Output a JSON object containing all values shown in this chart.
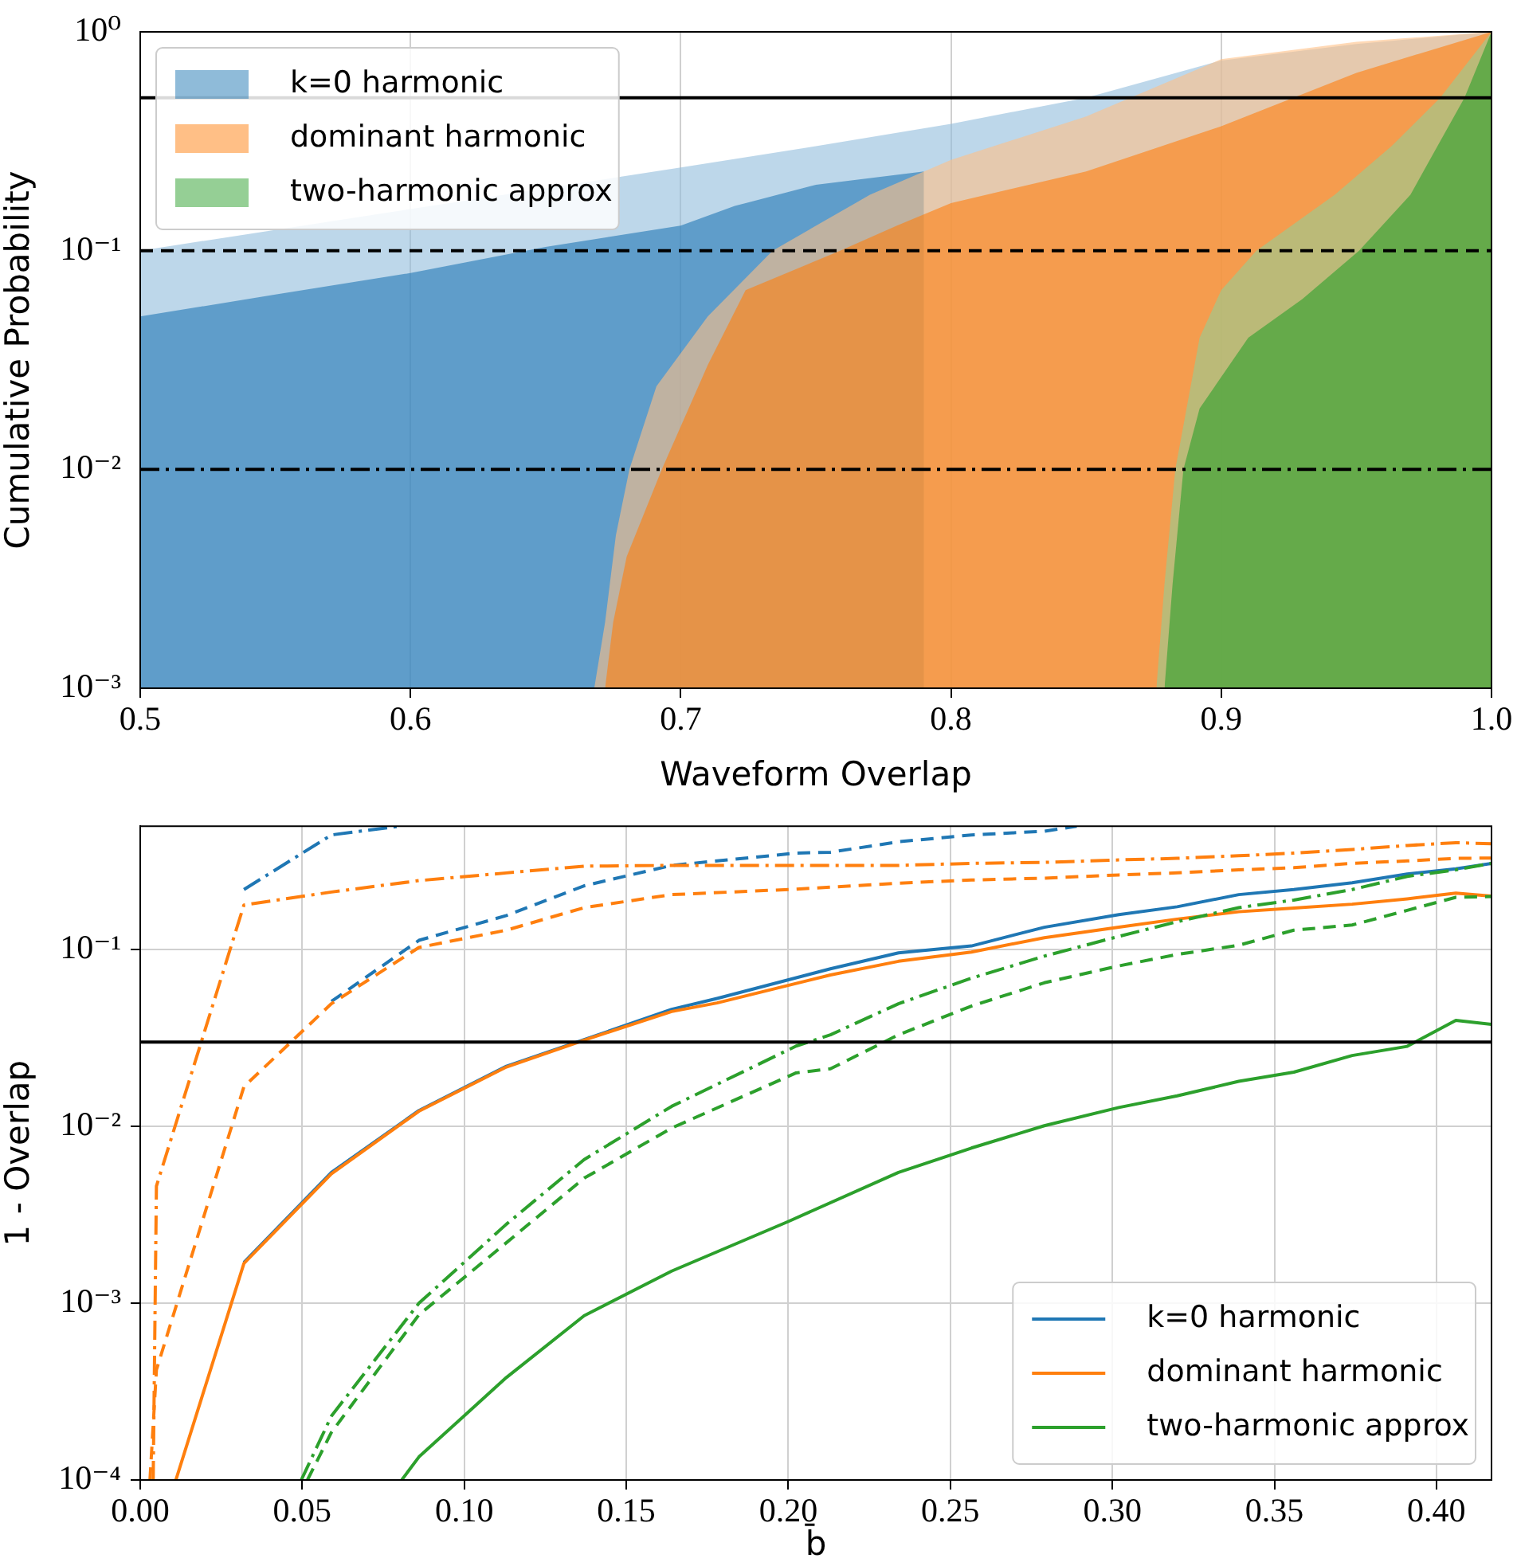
{
  "chart_data": [
    {
      "type": "area",
      "xlabel": "Waveform Overlap",
      "ylabel": "Cumulative Probability",
      "log": "y",
      "grid": "x",
      "legend": "top left",
      "xlim": [
        0.5,
        1.0
      ],
      "xticks": [
        0.5,
        0.6,
        0.7,
        0.8,
        0.9,
        {
          "value": 1.0,
          "label": "1.0"
        }
      ],
      "ylim": [
        0.001,
        1
      ],
      "yticks": [
        {
          "value": 0.001,
          "label": "10⁻³"
        },
        {
          "value": 0.01,
          "label": "10⁻²"
        },
        {
          "value": 0.1,
          "label": "10⁻¹"
        },
        {
          "value": 1,
          "label": "10⁰"
        }
      ],
      "ref_lines": [
        {
          "axis": "y",
          "value": 0.5,
          "color": "#000000",
          "line_style": "solid"
        },
        {
          "axis": "y",
          "value": 0.1,
          "color": "#000000",
          "line_style": "dashed"
        },
        {
          "axis": "y",
          "value": 0.01,
          "color": "#000000",
          "line_style": "dashdot"
        }
      ],
      "series": [
        {
          "color": "#91bcdc",
          "x": [
            0.5,
            0.55,
            0.6,
            0.65,
            0.7,
            0.75,
            0.8,
            0.85,
            0.9,
            0.95,
            1.0
          ],
          "values": [
            0.1,
            null,
            null,
            null,
            0.24,
            0.3,
            0.38,
            0.5,
            0.74,
            0.88,
            1
          ]
        },
        {
          "name": "k=0 harmonic",
          "color": "#1f77b4",
          "x": [
            0.5,
            0.55,
            0.6,
            0.65,
            0.7,
            0.72,
            0.75,
            0.79
          ],
          "values": [
            0.05,
            0.063,
            0.079,
            0.104,
            0.13,
            0.16,
            0.2,
            0.23
          ]
        },
        {
          "color": "#ffbf86",
          "x": [
            0.668,
            0.672,
            0.676,
            0.681,
            0.691,
            0.71,
            0.734,
            0.77,
            0.8,
            0.85,
            0.9,
            0.95,
            1.0
          ],
          "values": [
            0.001,
            0.002,
            0.005,
            0.01,
            0.024,
            0.05,
            0.1,
            0.18,
            0.26,
            0.41,
            0.75,
            0.9,
            1
          ]
        },
        {
          "name": "dominant harmonic",
          "color": "#ff7f0e",
          "x": [
            0.672,
            0.675,
            0.68,
            0.693,
            0.71,
            0.724,
            0.759,
            0.78,
            0.8,
            0.85,
            0.9,
            0.95,
            1.0
          ],
          "values": [
            0.001,
            0.002,
            0.004,
            0.01,
            0.03,
            0.066,
            0.1,
            0.13,
            0.165,
            0.23,
            0.37,
            0.65,
            1
          ]
        },
        {
          "color": "#95cf95",
          "x": [
            0.876,
            0.879,
            0.883,
            0.892,
            0.9,
            0.913,
            0.942,
            0.963,
            0.981,
            1.0
          ],
          "values": [
            0.001,
            0.003,
            0.01,
            0.04,
            0.066,
            0.1,
            0.18,
            0.3,
            0.5,
            1
          ]
        },
        {
          "name": "two-harmonic approx",
          "color": "#2ca02c",
          "x": [
            0.879,
            0.882,
            0.886,
            0.892,
            0.91,
            0.93,
            0.951,
            0.97,
            0.98,
            0.99,
            1.0
          ],
          "values": [
            0.001,
            0.003,
            0.01,
            0.019,
            0.04,
            0.06,
            0.1,
            0.18,
            0.3,
            0.5,
            1
          ]
        }
      ]
    },
    {
      "type": "line",
      "xlabel": "b̄",
      "ylabel": "1 - Overlap",
      "log": "y",
      "grid": true,
      "legend": "bottom right",
      "xlim": [
        0,
        0.417
      ],
      "xticks": [
        {
          "value": 0,
          "label": "0.00"
        },
        0.05,
        {
          "value": 0.1,
          "label": "0.10"
        },
        0.15,
        {
          "value": 0.2,
          "label": "0.20"
        },
        0.25,
        {
          "value": 0.3,
          "label": "0.30"
        },
        0.35,
        {
          "value": 0.4,
          "label": "0.40"
        }
      ],
      "ylim": [
        0.0001,
        0.5
      ],
      "yticks": [
        {
          "value": 0.0001,
          "label": "10⁻⁴"
        },
        {
          "value": 0.001,
          "label": "10⁻³"
        },
        {
          "value": 0.01,
          "label": "10⁻²"
        },
        {
          "value": 0.1,
          "label": "10⁻¹"
        }
      ],
      "ref_lines": [
        {
          "axis": "y",
          "value": 0.03,
          "color": "#000000",
          "line_style": "solid"
        }
      ],
      "series": [
        {
          "name": "k=0 harmonic",
          "color": "#1f77b4",
          "line_style": "solid",
          "x": [
            0.032,
            0.059,
            0.086,
            0.113,
            0.137,
            0.164,
            0.178,
            0.213,
            0.234,
            0.2565,
            0.279,
            0.302,
            0.32,
            0.339,
            0.356,
            0.374,
            0.391,
            0.406,
            0.417
          ],
          "values": [
            0.0017,
            0.0055,
            0.0123,
            0.0219,
            0.031,
            0.046,
            0.053,
            0.078,
            0.096,
            0.105,
            0.134,
            0.158,
            0.175,
            0.205,
            0.219,
            0.239,
            0.268,
            0.287,
            0.308
          ]
        },
        {
          "name": "dominant harmonic",
          "color": "#ff7f0e",
          "line_style": "solid",
          "x": [
            0.011,
            0.032,
            0.059,
            0.086,
            0.113,
            0.137,
            0.164,
            0.178,
            0.213,
            0.234,
            0.2565,
            0.279,
            0.302,
            0.32,
            0.339,
            0.356,
            0.374,
            0.391,
            0.406,
            0.417
          ],
          "values": [
            0.0001,
            0.00168,
            0.0054,
            0.0122,
            0.0217,
            0.0308,
            0.0447,
            0.05,
            0.072,
            0.086,
            0.097,
            0.117,
            0.134,
            0.149,
            0.164,
            0.172,
            0.181,
            0.194,
            0.209,
            0.201
          ]
        },
        {
          "name": "two-harmonic approx",
          "color": "#2ca02c",
          "line_style": "solid",
          "x": [
            0.0807,
            0.086,
            0.113,
            0.137,
            0.164,
            0.2,
            0.234,
            0.2565,
            0.279,
            0.302,
            0.32,
            0.339,
            0.356,
            0.374,
            0.391,
            0.406,
            0.417
          ],
          "values": [
            0.0001,
            0.000135,
            0.00038,
            0.00085,
            0.00152,
            0.0029,
            0.0055,
            0.00755,
            0.0101,
            0.0128,
            0.0149,
            0.018,
            0.0203,
            0.0252,
            0.0284,
            0.0398,
            0.0378
          ]
        },
        {
          "color": "#1f77b4",
          "line_style": "dashed",
          "x": [
            0.059,
            0.086,
            0.113,
            0.137,
            0.164,
            0.2024,
            0.213,
            0.234,
            0.2565,
            0.279,
            0.289
          ],
          "values": [
            0.051,
            0.113,
            0.156,
            0.23,
            0.3,
            0.352,
            0.356,
            0.408,
            0.446,
            0.468,
            0.5
          ]
        },
        {
          "color": "#ff7f0e",
          "line_style": "dashed",
          "x": [
            0.003,
            0.005,
            0.032,
            0.059,
            0.086,
            0.113,
            0.137,
            0.164,
            0.2024,
            0.234,
            0.2565,
            0.279,
            0.302,
            0.32,
            0.339,
            0.356,
            0.374,
            0.391,
            0.406,
            0.417
          ],
          "values": [
            0.0001,
            0.00042,
            0.0168,
            0.0495,
            0.103,
            0.129,
            0.173,
            0.205,
            0.22,
            0.238,
            0.248,
            0.254,
            0.265,
            0.272,
            0.283,
            0.291,
            0.308,
            0.318,
            0.329,
            0.33
          ]
        },
        {
          "color": "#2ca02c",
          "line_style": "dashed",
          "x": [
            0.0516,
            0.059,
            0.086,
            0.113,
            0.137,
            0.164,
            0.2024,
            0.213,
            0.234,
            0.2565,
            0.279,
            0.302,
            0.32,
            0.339,
            0.356,
            0.374,
            0.391,
            0.406,
            0.417
          ],
          "values": [
            0.0001,
            0.000186,
            0.00086,
            0.0022,
            0.0051,
            0.0098,
            0.0201,
            0.0212,
            0.033,
            0.048,
            0.065,
            0.081,
            0.094,
            0.106,
            0.129,
            0.138,
            0.167,
            0.198,
            0.2
          ]
        },
        {
          "color": "#1f77b4",
          "line_style": "dashdot",
          "x": [
            0.032,
            0.059,
            0.08
          ],
          "values": [
            0.219,
            0.446,
            0.5
          ]
        },
        {
          "color": "#ff7f0e",
          "line_style": "dashdot",
          "x": [
            0.004,
            0.005,
            0.032,
            0.059,
            0.086,
            0.113,
            0.137,
            0.164,
            0.2024,
            0.234,
            0.2565,
            0.279,
            0.302,
            0.32,
            0.339,
            0.356,
            0.374,
            0.391,
            0.406,
            0.417
          ],
          "values": [
            0.0001,
            0.0046,
            0.179,
            0.212,
            0.246,
            0.272,
            0.297,
            0.3,
            0.3,
            0.3,
            0.308,
            0.312,
            0.322,
            0.329,
            0.34,
            0.352,
            0.369,
            0.389,
            0.403,
            0.398
          ]
        },
        {
          "color": "#2ca02c",
          "line_style": "dashdot",
          "x": [
            0.0497,
            0.059,
            0.086,
            0.113,
            0.137,
            0.164,
            0.2024,
            0.213,
            0.234,
            0.2565,
            0.279,
            0.302,
            0.32,
            0.339,
            0.356,
            0.374,
            0.391,
            0.406,
            0.417
          ],
          "values": [
            0.0001,
            0.00023,
            0.001,
            0.0028,
            0.0065,
            0.013,
            0.0285,
            0.033,
            0.0495,
            0.069,
            0.092,
            0.119,
            0.144,
            0.173,
            0.191,
            0.219,
            0.26,
            0.283,
            0.308
          ]
        }
      ]
    }
  ]
}
